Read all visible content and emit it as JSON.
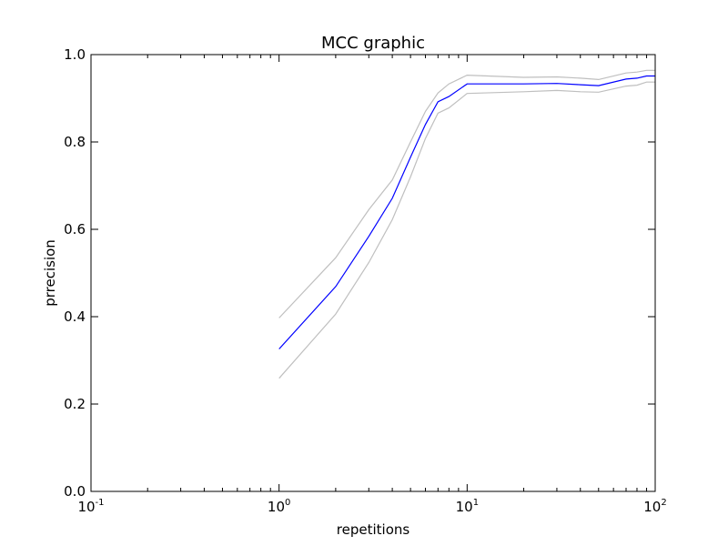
{
  "chart_data": {
    "type": "line",
    "title": "MCC graphic",
    "xlabel": "repetitions",
    "ylabel": "prrecision",
    "xscale": "log",
    "xlim": [
      0.1,
      100
    ],
    "ylim": [
      0.0,
      1.0
    ],
    "grid": false,
    "legend": "none",
    "x_ticks": [
      {
        "base": "10",
        "exp": "-1",
        "value": 0.1
      },
      {
        "base": "10",
        "exp": "0",
        "value": 1
      },
      {
        "base": "10",
        "exp": "1",
        "value": 10
      },
      {
        "base": "10",
        "exp": "2",
        "value": 100
      }
    ],
    "y_ticks": [
      {
        "label": "0.0",
        "value": 0.0
      },
      {
        "label": "0.2",
        "value": 0.2
      },
      {
        "label": "0.4",
        "value": 0.4
      },
      {
        "label": "0.6",
        "value": 0.6
      },
      {
        "label": "0.8",
        "value": 0.8
      },
      {
        "label": "1.0",
        "value": 1.0
      }
    ],
    "x": [
      1,
      2,
      3,
      4,
      5,
      6,
      7,
      8,
      10,
      20,
      30,
      40,
      50,
      70,
      80,
      90,
      100
    ],
    "series": [
      {
        "role": "upper",
        "color": "#bfbfbf",
        "values": [
          0.397,
          0.535,
          0.645,
          0.713,
          0.8,
          0.87,
          0.912,
          0.933,
          0.953,
          0.948,
          0.949,
          0.946,
          0.943,
          0.958,
          0.96,
          0.964,
          0.964
        ]
      },
      {
        "role": "mean",
        "color": "#0000ff",
        "values": [
          0.326,
          0.469,
          0.584,
          0.671,
          0.765,
          0.84,
          0.892,
          0.904,
          0.933,
          0.933,
          0.934,
          0.931,
          0.929,
          0.944,
          0.946,
          0.951,
          0.951
        ]
      },
      {
        "role": "lower",
        "color": "#bfbfbf",
        "values": [
          0.259,
          0.406,
          0.524,
          0.622,
          0.72,
          0.808,
          0.866,
          0.878,
          0.911,
          0.915,
          0.918,
          0.915,
          0.914,
          0.928,
          0.93,
          0.937,
          0.937
        ]
      }
    ]
  }
}
